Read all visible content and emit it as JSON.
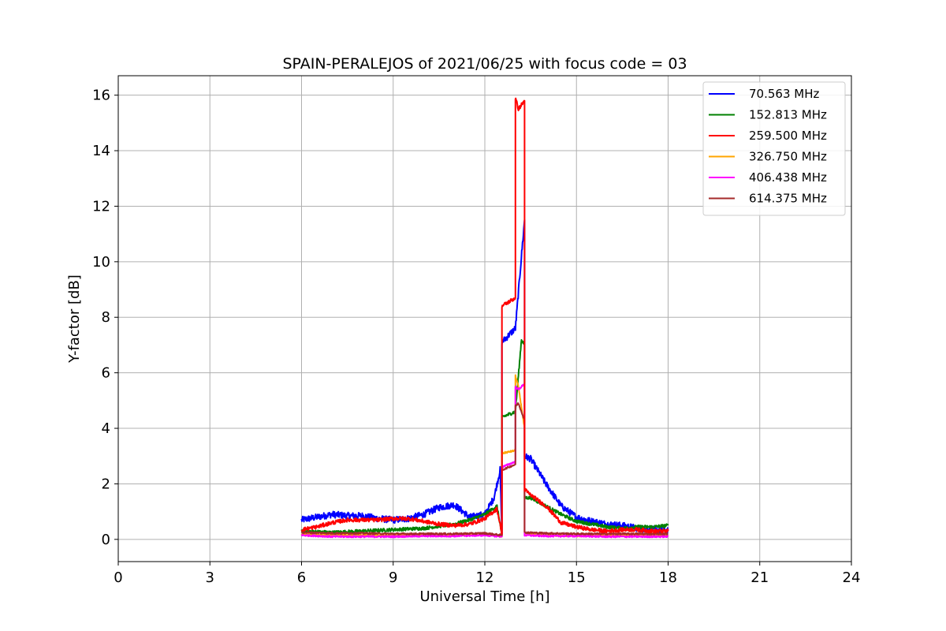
{
  "chart_data": {
    "type": "line",
    "title": "SPAIN-PERALEJOS of 2021/06/25 with focus code = 03",
    "xlabel": "Universal Time [h]",
    "ylabel": "Y-factor [dB]",
    "xlim": [
      0,
      24
    ],
    "ylim": [
      -0.8,
      16.7
    ],
    "xticks": [
      0,
      3,
      6,
      9,
      12,
      15,
      18,
      21,
      24
    ],
    "yticks": [
      0,
      2,
      4,
      6,
      8,
      10,
      12,
      14,
      16
    ],
    "grid": true,
    "legend_position": "top-right",
    "series": [
      {
        "name": "  70.563 MHz",
        "color": "#0000ff",
        "x": [
          6.0,
          6.5,
          7.0,
          7.5,
          8.0,
          8.5,
          9.0,
          9.5,
          10.0,
          10.5,
          11.0,
          11.5,
          12.0,
          12.3,
          12.5,
          12.56,
          12.56,
          13.0,
          13.3,
          13.3,
          13.3,
          13.5,
          14.0,
          14.5,
          15.0,
          15.5,
          16.0,
          16.5,
          17.0,
          17.5,
          18.0
        ],
        "y": [
          0.7,
          0.8,
          0.9,
          0.85,
          0.85,
          0.75,
          0.7,
          0.75,
          0.9,
          1.15,
          1.25,
          0.8,
          0.9,
          1.5,
          2.5,
          0.15,
          7.1,
          7.6,
          11.5,
          8.7,
          3.0,
          2.9,
          2.0,
          1.2,
          0.8,
          0.65,
          0.55,
          0.5,
          0.4,
          0.35,
          0.3
        ],
        "noise": 0.12
      },
      {
        "name": "152.813 MHz",
        "color": "#008000",
        "x": [
          6.0,
          7.0,
          8.0,
          9.0,
          10.0,
          11.0,
          11.5,
          12.0,
          12.4,
          12.56,
          12.56,
          13.0,
          13.2,
          13.3,
          13.3,
          13.5,
          14.0,
          14.5,
          15.0,
          15.5,
          16.0,
          16.5,
          17.0,
          17.5,
          18.0
        ],
        "y": [
          0.3,
          0.25,
          0.3,
          0.35,
          0.4,
          0.55,
          0.7,
          0.9,
          1.2,
          0.15,
          4.4,
          4.6,
          7.2,
          7.0,
          1.5,
          1.5,
          1.2,
          0.9,
          0.65,
          0.55,
          0.45,
          0.4,
          0.45,
          0.45,
          0.5
        ],
        "noise": 0.06
      },
      {
        "name": "259.500 MHz",
        "color": "#ff0000",
        "x": [
          6.0,
          6.5,
          7.0,
          7.5,
          8.0,
          8.5,
          9.0,
          9.5,
          10.0,
          10.5,
          11.0,
          11.5,
          12.0,
          12.4,
          12.56,
          12.56,
          13.0,
          13.0,
          13.1,
          13.3,
          13.3,
          13.5,
          14.0,
          14.5,
          15.0,
          15.5,
          16.0,
          16.5,
          17.0,
          17.5,
          18.0
        ],
        "y": [
          0.35,
          0.45,
          0.6,
          0.7,
          0.7,
          0.7,
          0.75,
          0.75,
          0.65,
          0.55,
          0.5,
          0.55,
          0.75,
          1.1,
          0.2,
          8.4,
          8.7,
          15.9,
          15.5,
          15.8,
          1.8,
          1.6,
          1.2,
          0.6,
          0.45,
          0.35,
          0.3,
          0.35,
          0.35,
          0.3,
          0.3
        ],
        "noise": 0.07
      },
      {
        "name": "326.750 MHz",
        "color": "#ffa500",
        "x": [
          6.0,
          7.0,
          8.0,
          9.0,
          10.0,
          11.0,
          12.0,
          12.56,
          12.56,
          13.0,
          13.0,
          13.1,
          13.3,
          13.3,
          14.0,
          15.0,
          16.0,
          17.0,
          18.0
        ],
        "y": [
          0.2,
          0.15,
          0.15,
          0.15,
          0.15,
          0.15,
          0.2,
          0.1,
          3.1,
          3.2,
          5.9,
          5.5,
          4.0,
          0.2,
          0.15,
          0.12,
          0.15,
          0.15,
          0.15
        ],
        "noise": 0.03
      },
      {
        "name": "406.438 MHz",
        "color": "#ff00ff",
        "x": [
          6.0,
          7.0,
          8.0,
          9.0,
          10.0,
          11.0,
          12.0,
          12.56,
          12.56,
          13.0,
          13.0,
          13.1,
          13.3,
          13.3,
          14.0,
          15.0,
          16.0,
          17.0,
          18.0
        ],
        "y": [
          0.15,
          0.1,
          0.1,
          0.1,
          0.12,
          0.12,
          0.15,
          0.1,
          2.6,
          2.8,
          5.5,
          5.4,
          5.6,
          0.15,
          0.12,
          0.12,
          0.1,
          0.1,
          0.1
        ],
        "noise": 0.03
      },
      {
        "name": "614.375 MHz",
        "color": "#a52a2a",
        "x": [
          6.0,
          7.0,
          8.0,
          9.0,
          10.0,
          11.0,
          12.0,
          12.56,
          12.56,
          13.0,
          13.0,
          13.1,
          13.3,
          13.3,
          14.0,
          15.0,
          16.0,
          17.0,
          18.0
        ],
        "y": [
          0.25,
          0.22,
          0.22,
          0.2,
          0.2,
          0.2,
          0.22,
          0.15,
          2.5,
          2.7,
          4.8,
          4.9,
          4.3,
          0.25,
          0.22,
          0.2,
          0.2,
          0.2,
          0.2
        ],
        "noise": 0.03
      }
    ]
  }
}
